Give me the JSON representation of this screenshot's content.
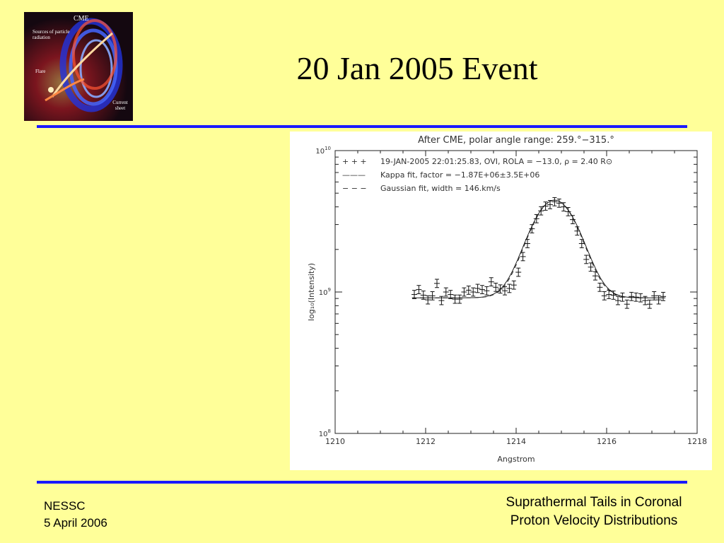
{
  "slide": {
    "title": "20 Jan 2005 Event",
    "footer_left_line1": "NESSC",
    "footer_left_line2": "5 April 2006",
    "footer_right_line1": "Suprathermal Tails in Coronal",
    "footer_right_line2": "Proton Velocity Distributions",
    "rule_color": "#1a1aff",
    "background_color": "#FFFF99"
  },
  "logo": {
    "label_cme": "CME",
    "label_sources": "Sources of particle radiation",
    "label_flare": "Flare",
    "label_current_sheet": "Current sheet"
  },
  "chart_data": {
    "type": "scatter",
    "title": "After CME, polar angle range: 259.°−315.°",
    "xlabel": "Angstrom",
    "ylabel": "log₁₀(Intensity)",
    "xlim": [
      1210,
      1218
    ],
    "ylim": [
      100000000,
      10000000000
    ],
    "yscale": "log",
    "x_ticks": [
      "1210",
      "1212",
      "1214",
      "1216",
      "1218"
    ],
    "y_ticks": [
      {
        "base": "10",
        "exp": "10"
      },
      {
        "base": "10",
        "exp": "9"
      },
      {
        "base": "10",
        "exp": "8"
      }
    ],
    "legend": [
      {
        "symbol": "+ + +",
        "label": "19-JAN-2005 22:01:25.83, OVI, ROLA = −13.0, ρ = 2.40 R⊙"
      },
      {
        "symbol": "———",
        "label": "Kappa fit, factor = −1.87E+06±3.5E+06"
      },
      {
        "symbol": "− − −",
        "label": "Gaussian fit, width = 146.km/s"
      }
    ],
    "legend_position": "top-left",
    "grid": false,
    "series": [
      {
        "name": "19-JAN-2005 22:01:25.83, OVI, ROLA = −13.0, ρ = 2.40 R⊙",
        "kind": "data_with_errorbars",
        "x": [
          1211.75,
          1211.85,
          1211.95,
          1212.05,
          1212.15,
          1212.25,
          1212.35,
          1212.45,
          1212.55,
          1212.65,
          1212.75,
          1212.85,
          1212.95,
          1213.05,
          1213.15,
          1213.25,
          1213.35,
          1213.45,
          1213.55,
          1213.65,
          1213.75,
          1213.85,
          1213.95,
          1214.05,
          1214.15,
          1214.25,
          1214.35,
          1214.45,
          1214.55,
          1214.65,
          1214.75,
          1214.85,
          1214.95,
          1215.05,
          1215.15,
          1215.25,
          1215.35,
          1215.45,
          1215.55,
          1215.65,
          1215.75,
          1215.85,
          1215.95,
          1216.05,
          1216.15,
          1216.25,
          1216.35,
          1216.45,
          1216.55,
          1216.65,
          1216.75,
          1216.85,
          1216.95,
          1217.05,
          1217.15,
          1217.25
        ],
        "y": [
          960000000,
          1040000000,
          950000000,
          880000000,
          940000000,
          1150000000,
          870000000,
          1000000000,
          960000000,
          890000000,
          890000000,
          1000000000,
          1030000000,
          1000000000,
          1060000000,
          1040000000,
          1020000000,
          1180000000,
          1080000000,
          1050000000,
          1020000000,
          1060000000,
          1120000000,
          1380000000,
          1780000000,
          2200000000,
          2800000000,
          3300000000,
          3750000000,
          4050000000,
          4150000000,
          4350000000,
          4250000000,
          4000000000,
          3700000000,
          3250000000,
          2700000000,
          2200000000,
          1700000000,
          1500000000,
          1300000000,
          1080000000,
          940000000,
          960000000,
          950000000,
          870000000,
          920000000,
          820000000,
          930000000,
          920000000,
          910000000,
          870000000,
          820000000,
          940000000,
          880000000,
          930000000
        ],
        "error": 0.07
      },
      {
        "name": "Kappa fit, factor = −1.87E+06±3.5E+06",
        "kind": "kappa_fit",
        "baseline": 910000000,
        "amplitude": 3550000000,
        "center": 1214.85,
        "sigma": 0.47
      },
      {
        "name": "Gaussian fit, width = 146.km/s",
        "kind": "gaussian_fit",
        "baseline": 910000000,
        "amplitude": 3550000000,
        "center": 1214.85,
        "sigma": 0.46
      }
    ]
  }
}
